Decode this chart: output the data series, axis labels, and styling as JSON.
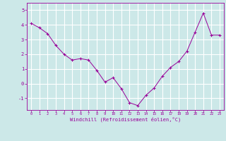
{
  "x": [
    0,
    1,
    2,
    3,
    4,
    5,
    6,
    7,
    8,
    9,
    10,
    11,
    12,
    13,
    14,
    15,
    16,
    17,
    18,
    19,
    20,
    21,
    22,
    23
  ],
  "y": [
    4.1,
    3.8,
    3.4,
    2.6,
    2.0,
    1.6,
    1.7,
    1.6,
    0.9,
    0.1,
    0.4,
    -0.35,
    -1.3,
    -1.5,
    -0.8,
    -0.3,
    0.5,
    1.1,
    1.5,
    2.2,
    3.5,
    4.8,
    3.3,
    3.3
  ],
  "line_color": "#990099",
  "marker": "+",
  "marker_size": 3,
  "bg_color": "#cce8e8",
  "grid_color": "#ffffff",
  "xlabel": "Windchill (Refroidissement éolien,°C)",
  "xlabel_color": "#990099",
  "tick_color": "#990099",
  "spine_color": "#990099",
  "ylim": [
    -1.8,
    5.5
  ],
  "xlim": [
    -0.5,
    23.5
  ],
  "yticks": [
    -1,
    0,
    1,
    2,
    3,
    4,
    5
  ],
  "xticks": [
    0,
    1,
    2,
    3,
    4,
    5,
    6,
    7,
    8,
    9,
    10,
    11,
    12,
    13,
    14,
    15,
    16,
    17,
    18,
    19,
    20,
    21,
    22,
    23
  ]
}
